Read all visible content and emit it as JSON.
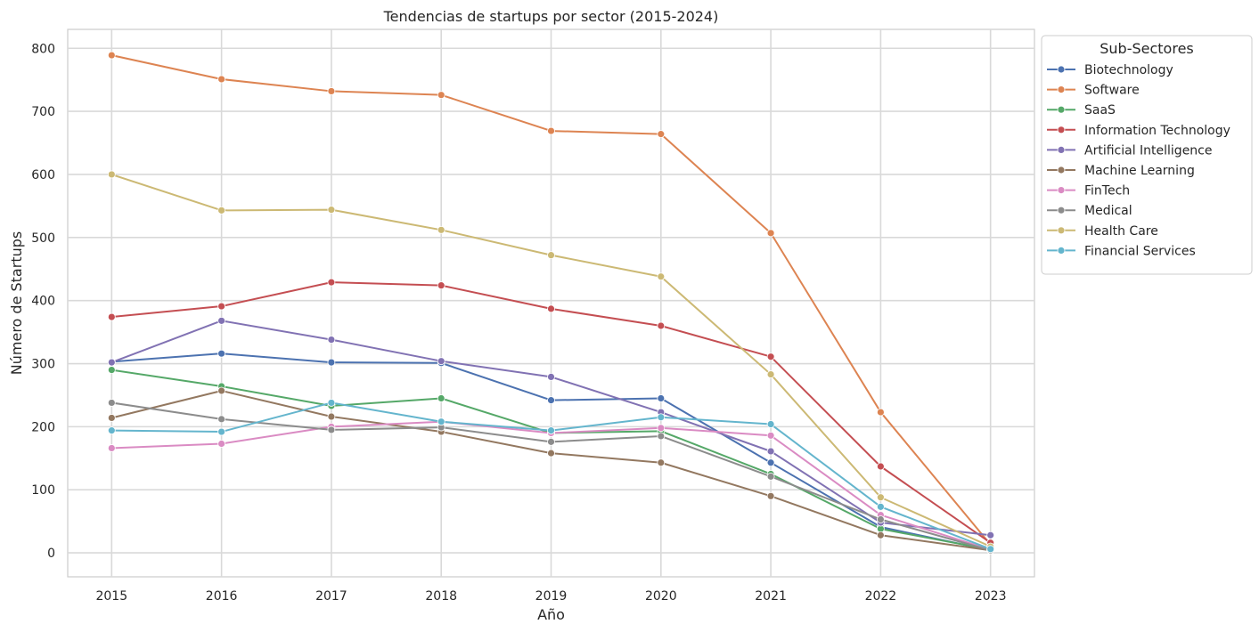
{
  "chart_data": {
    "type": "line",
    "title": "Tendencias de startups por sector (2015-2024)",
    "xlabel": "Año",
    "ylabel": "Número de Startups",
    "x": [
      2015,
      2016,
      2017,
      2018,
      2019,
      2020,
      2021,
      2022,
      2023
    ],
    "x_ticks": [
      "2015",
      "2016",
      "2017",
      "2018",
      "2019",
      "2020",
      "2021",
      "2022",
      "2023"
    ],
    "y_ticks": [
      "0",
      "100",
      "200",
      "300",
      "400",
      "500",
      "600",
      "700",
      "800"
    ],
    "ylim": [
      -38,
      830
    ],
    "xlim": [
      2014.6,
      2023.4
    ],
    "grid": true,
    "legend": {
      "title": "Sub-Sectores",
      "placement": "outside top-right"
    },
    "series": [
      {
        "name": "Biotechnology",
        "color": "#4c72b0",
        "values": [
          303,
          316,
          302,
          301,
          242,
          245,
          143,
          41,
          4
        ]
      },
      {
        "name": "Software",
        "color": "#dd8452",
        "values": [
          789,
          751,
          732,
          726,
          669,
          664,
          507,
          223,
          13
        ]
      },
      {
        "name": "SaaS",
        "color": "#55a868",
        "values": [
          290,
          264,
          233,
          245,
          190,
          193,
          125,
          38,
          5
        ]
      },
      {
        "name": "Information Technology",
        "color": "#c44e52",
        "values": [
          374,
          391,
          429,
          424,
          387,
          360,
          311,
          137,
          16
        ]
      },
      {
        "name": "Artificial Intelligence",
        "color": "#8172b3",
        "values": [
          302,
          368,
          338,
          304,
          279,
          223,
          161,
          48,
          28
        ]
      },
      {
        "name": "Machine Learning",
        "color": "#937860",
        "values": [
          214,
          257,
          216,
          192,
          158,
          143,
          90,
          28,
          4
        ]
      },
      {
        "name": "FinTech",
        "color": "#da8bc3",
        "values": [
          166,
          173,
          200,
          208,
          190,
          198,
          186,
          60,
          5
        ]
      },
      {
        "name": "Medical",
        "color": "#8c8c8c",
        "values": [
          238,
          212,
          195,
          199,
          176,
          185,
          121,
          53,
          4
        ]
      },
      {
        "name": "Health Care",
        "color": "#ccb974",
        "values": [
          600,
          543,
          544,
          512,
          472,
          438,
          283,
          88,
          10
        ]
      },
      {
        "name": "Financial Services",
        "color": "#64b5cd",
        "values": [
          194,
          192,
          238,
          208,
          194,
          215,
          204,
          73,
          6
        ]
      }
    ]
  }
}
